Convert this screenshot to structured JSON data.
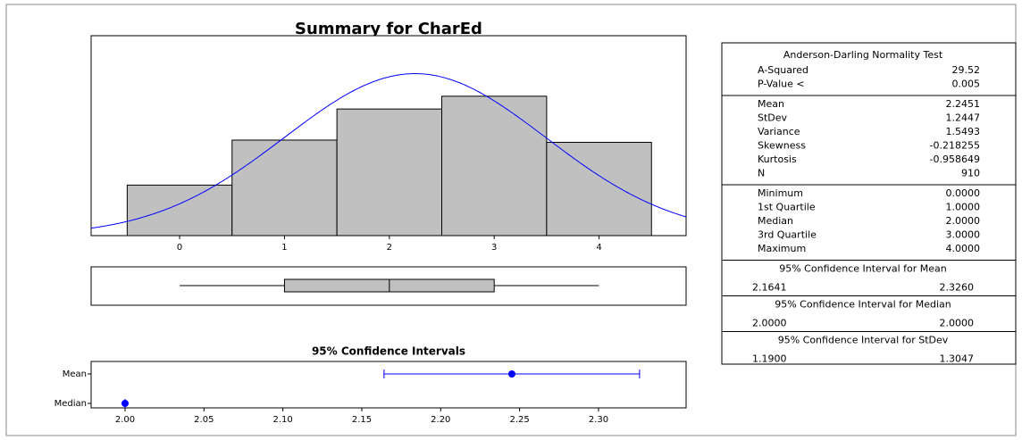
{
  "title": "Summary for CharEd",
  "chart_data": [
    {
      "type": "histogram",
      "bins": [
        -0.5,
        0.5,
        1.5,
        2.5,
        3.5,
        4.5
      ],
      "values": [
        91,
        172,
        228,
        251,
        168
      ],
      "color": "#c0c0c0",
      "xlim": [
        -0.844,
        4.83
      ],
      "xticks": [
        0,
        1,
        2,
        3,
        4
      ],
      "ylim": [
        0,
        360
      ],
      "fit": {
        "mean": 2.2451,
        "stdev": 1.2447,
        "n": 910,
        "color": "#0000ff"
      }
    },
    {
      "type": "box",
      "min": 0,
      "q1": 1,
      "median": 2,
      "q3": 3,
      "max": 4,
      "color": "#c0c0c0",
      "xlim": [
        -0.844,
        4.83
      ]
    },
    {
      "type": "interval",
      "title": "95% Confidence Intervals",
      "categories": [
        "Mean",
        "Median"
      ],
      "values": [
        2.2451,
        2.0
      ],
      "lower": [
        2.1641,
        2.0
      ],
      "upper": [
        2.326,
        2.0
      ],
      "color": "#0000ff",
      "xlim": [
        1.9785,
        2.3555
      ],
      "xticks": [
        {
          "value": 2.0,
          "label": "2.00"
        },
        {
          "value": 2.05,
          "label": "2.05"
        },
        {
          "value": 2.1,
          "label": "2.10"
        },
        {
          "value": 2.15,
          "label": "2.15"
        },
        {
          "value": 2.2,
          "label": "2.20"
        },
        {
          "value": 2.25,
          "label": "2.25"
        },
        {
          "value": 2.3,
          "label": "2.30"
        }
      ]
    }
  ],
  "stats": {
    "sections": [
      {
        "header": "Anderson-Darling Normality Test",
        "rows": [
          [
            "A-Squared",
            "29.52"
          ],
          [
            "P-Value <",
            "0.005"
          ]
        ]
      },
      {
        "rows": [
          [
            "Mean",
            "2.2451"
          ],
          [
            "StDev",
            "1.2447"
          ],
          [
            "Variance",
            "1.5493"
          ],
          [
            "Skewness",
            "-0.218255"
          ],
          [
            "Kurtosis",
            "-0.958649"
          ],
          [
            "N",
            "910"
          ]
        ]
      },
      {
        "rows": [
          [
            "Minimum",
            "0.0000"
          ],
          [
            "1st Quartile",
            "1.0000"
          ],
          [
            "Median",
            "2.0000"
          ],
          [
            "3rd Quartile",
            "3.0000"
          ],
          [
            "Maximum",
            "4.0000"
          ]
        ]
      },
      {
        "header": "95% Confidence Interval for Mean",
        "pair": [
          "2.1641",
          "2.3260"
        ]
      },
      {
        "header": "95% Confidence Interval for Median",
        "pair": [
          "2.0000",
          "2.0000"
        ]
      },
      {
        "header": "95% Confidence Interval for StDev",
        "pair": [
          "1.1900",
          "1.3047"
        ]
      }
    ]
  }
}
